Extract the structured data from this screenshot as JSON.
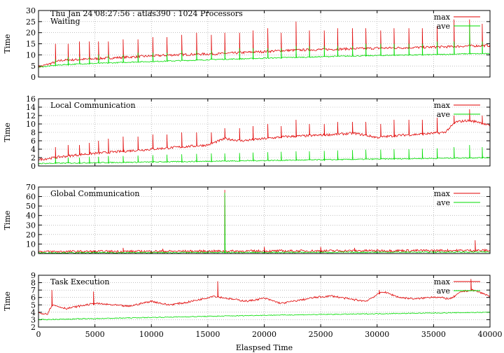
{
  "header": {
    "line": "Thu Jan 24 08:27:56 : atlas390 : 1024 Processors"
  },
  "chart_data": [
    {
      "type": "line",
      "panel_label": "Waiting",
      "ylabel": "Time",
      "xlim": [
        0,
        40000
      ],
      "ylim": [
        0,
        30
      ],
      "yticks": [
        0,
        5,
        10,
        15,
        20,
        25,
        30
      ],
      "grid": true,
      "legend_position": "top-right",
      "series": [
        {
          "name": "max",
          "color": "#e00000",
          "x": [
            0,
            2000,
            4000,
            6000,
            8000,
            10000,
            12000,
            14000,
            16000,
            18000,
            20000,
            22000,
            24000,
            26000,
            28000,
            30000,
            32000,
            34000,
            36000,
            38000,
            40000
          ],
          "values": [
            4.5,
            7.5,
            8.0,
            8.5,
            9.0,
            9.5,
            10.0,
            10.3,
            10.5,
            11.0,
            11.5,
            12.0,
            12.3,
            12.5,
            12.8,
            13.0,
            13.2,
            13.4,
            13.6,
            14.0,
            14.2
          ],
          "spikes_x": [
            1500,
            2600,
            3600,
            4500,
            5300,
            6200,
            7500,
            8800,
            10100,
            11400,
            12700,
            14000,
            15300,
            16500,
            17800,
            19000,
            20300,
            21500,
            22800,
            24000,
            25300,
            26500,
            27800,
            29000,
            30300,
            31500,
            32800,
            34000,
            35300,
            36800,
            38200,
            39300
          ],
          "spikes_y": [
            15,
            15,
            16,
            16,
            16,
            16,
            17,
            17,
            18,
            18,
            19,
            20,
            19,
            20,
            20,
            21,
            22,
            20,
            25,
            21,
            21,
            22,
            22,
            22,
            21,
            22,
            22,
            22,
            23,
            26,
            26,
            24
          ]
        },
        {
          "name": "ave",
          "color": "#00dd00",
          "x": [
            0,
            2000,
            4000,
            6000,
            8000,
            10000,
            12000,
            14000,
            16000,
            18000,
            20000,
            22000,
            24000,
            26000,
            28000,
            30000,
            32000,
            34000,
            36000,
            38000,
            40000
          ],
          "values": [
            4.5,
            5.5,
            6.0,
            6.3,
            6.7,
            7.0,
            7.3,
            7.6,
            8.0,
            8.2,
            8.5,
            8.8,
            9.0,
            9.3,
            9.5,
            9.7,
            9.9,
            10.0,
            10.2,
            10.5,
            10.5
          ],
          "spikes_x": [
            1500,
            2600,
            3600,
            4500,
            5300,
            6200,
            7500,
            8800,
            10100,
            11400,
            12700,
            14000,
            15300,
            16500,
            17800,
            19000,
            20300,
            21500,
            22800,
            24000,
            25300,
            26500,
            27800,
            29000,
            30300,
            31500,
            32800,
            34000,
            35300,
            36800,
            38200,
            39300
          ],
          "spikes_y": [
            8,
            9,
            9,
            9,
            10,
            10,
            10,
            11,
            11,
            11,
            12,
            12,
            12,
            12,
            13,
            13,
            13,
            13,
            14,
            14,
            14,
            14,
            14,
            15,
            15,
            15,
            15,
            15,
            16,
            16,
            24,
            16
          ]
        }
      ]
    },
    {
      "type": "line",
      "panel_label": "Local Communication",
      "ylabel": "Time",
      "xlim": [
        0,
        40000
      ],
      "ylim": [
        0,
        16
      ],
      "yticks": [
        0,
        2,
        4,
        6,
        8,
        10,
        12,
        14,
        16
      ],
      "grid": true,
      "legend_position": "top-right",
      "series": [
        {
          "name": "max",
          "color": "#e00000",
          "x": [
            0,
            2000,
            4000,
            6000,
            8000,
            10000,
            12000,
            14000,
            15000,
            16500,
            18000,
            20000,
            22000,
            24000,
            26000,
            28000,
            30000,
            32000,
            34000,
            36000,
            37000,
            38000,
            39000,
            40000
          ],
          "values": [
            1.5,
            2.2,
            2.8,
            3.2,
            3.6,
            4.0,
            4.4,
            4.8,
            5.0,
            6.5,
            6.0,
            6.5,
            7.0,
            7.2,
            7.5,
            7.8,
            6.8,
            7.3,
            7.6,
            8.0,
            10.5,
            10.8,
            10.5,
            9.5
          ],
          "spikes_x": [
            1500,
            2600,
            3600,
            4500,
            5300,
            6200,
            7500,
            8800,
            10100,
            11400,
            12700,
            14000,
            15300,
            16500,
            17800,
            19000,
            20300,
            21500,
            22800,
            24000,
            25300,
            26500,
            27800,
            29000,
            30300,
            31500,
            32800,
            34000,
            35300,
            36800,
            38200,
            39300
          ],
          "spikes_y": [
            4.5,
            5,
            5,
            5.5,
            6,
            6.5,
            7,
            7,
            7.5,
            7.5,
            8,
            8,
            8,
            9,
            9,
            9.5,
            10,
            9.5,
            11,
            10,
            10,
            10.5,
            10.5,
            10.5,
            10,
            11,
            11,
            11,
            11.5,
            12,
            13.5,
            12
          ]
        },
        {
          "name": "ave",
          "color": "#00dd00",
          "x": [
            0,
            40000
          ],
          "values": [
            0.6,
            2.0
          ],
          "spikes_x": [
            1500,
            2600,
            3600,
            4500,
            5300,
            6200,
            7500,
            8800,
            10100,
            11400,
            12700,
            14000,
            15300,
            16500,
            17800,
            19000,
            20300,
            21500,
            22800,
            24000,
            25300,
            26500,
            27800,
            29000,
            30300,
            31500,
            32800,
            34000,
            35300,
            36800,
            38200,
            39300
          ],
          "spikes_y": [
            2,
            2,
            2,
            2.2,
            2.2,
            2.4,
            2.4,
            2.5,
            2.6,
            2.7,
            2.8,
            2.9,
            3,
            3,
            3.1,
            3.2,
            3.3,
            3.4,
            3.5,
            3.5,
            3.6,
            3.7,
            3.8,
            3.9,
            3.9,
            4,
            4,
            4.1,
            4.2,
            4.5,
            5,
            4.5
          ]
        }
      ]
    },
    {
      "type": "line",
      "panel_label": "Global Communication",
      "ylabel": "Time",
      "xlim": [
        0,
        40000
      ],
      "ylim": [
        0,
        70
      ],
      "yticks": [
        0,
        10,
        20,
        30,
        40,
        50,
        60,
        70
      ],
      "grid": true,
      "legend_position": "top-right",
      "series": [
        {
          "name": "max",
          "color": "#e00000",
          "x": [
            0,
            10000,
            20000,
            30000,
            40000
          ],
          "values": [
            2.0,
            2.3,
            2.6,
            3.0,
            3.3
          ],
          "spikes_x": [
            7500,
            11000,
            16500,
            20000,
            25000,
            28000,
            38700
          ],
          "spikes_y": [
            6,
            5,
            67,
            7,
            7,
            6,
            14
          ]
        },
        {
          "name": "ave",
          "color": "#00dd00",
          "x": [
            0,
            10000,
            20000,
            30000,
            40000
          ],
          "values": [
            0.8,
            1.0,
            1.2,
            1.4,
            1.6
          ],
          "spikes_x": [
            16500
          ],
          "spikes_y": [
            64
          ]
        }
      ]
    },
    {
      "type": "line",
      "panel_label": "Task Execution",
      "ylabel": "Time",
      "xlabel": "Elaspsed Time",
      "xlim": [
        0,
        40000
      ],
      "xticks": [
        0,
        5000,
        10000,
        15000,
        20000,
        25000,
        30000,
        35000,
        40000
      ],
      "ylim": [
        2,
        9
      ],
      "yticks": [
        2,
        3,
        4,
        5,
        6,
        7,
        8,
        9
      ],
      "grid": true,
      "legend_position": "top-right",
      "series": [
        {
          "name": "max",
          "color": "#e00000",
          "x": [
            0,
            800,
            1200,
            2500,
            3500,
            5000,
            6500,
            8000,
            10000,
            11500,
            13000,
            14500,
            15500,
            17000,
            18500,
            20000,
            21500,
            23000,
            24500,
            26000,
            27500,
            29000,
            30500,
            32000,
            33500,
            35000,
            36500,
            37500,
            38500,
            40000
          ],
          "values": [
            3.9,
            3.8,
            5.0,
            4.5,
            4.8,
            5.2,
            5.0,
            4.8,
            5.5,
            5.0,
            5.3,
            5.8,
            6.2,
            5.8,
            5.5,
            5.9,
            5.2,
            5.6,
            6.0,
            6.2,
            5.8,
            5.5,
            6.8,
            6.0,
            5.8,
            6.1,
            5.8,
            6.8,
            7.0,
            6.2
          ],
          "spikes_x": [
            1200,
            4900,
            15900,
            30200,
            38300
          ],
          "spikes_y": [
            7.0,
            6.8,
            8.2,
            7.0,
            8.5
          ]
        },
        {
          "name": "ave",
          "color": "#00dd00",
          "x": [
            0,
            10000,
            20000,
            30000,
            40000
          ],
          "values": [
            3.0,
            3.3,
            3.6,
            3.8,
            4.0
          ],
          "spikes_x": [],
          "spikes_y": []
        }
      ]
    }
  ]
}
